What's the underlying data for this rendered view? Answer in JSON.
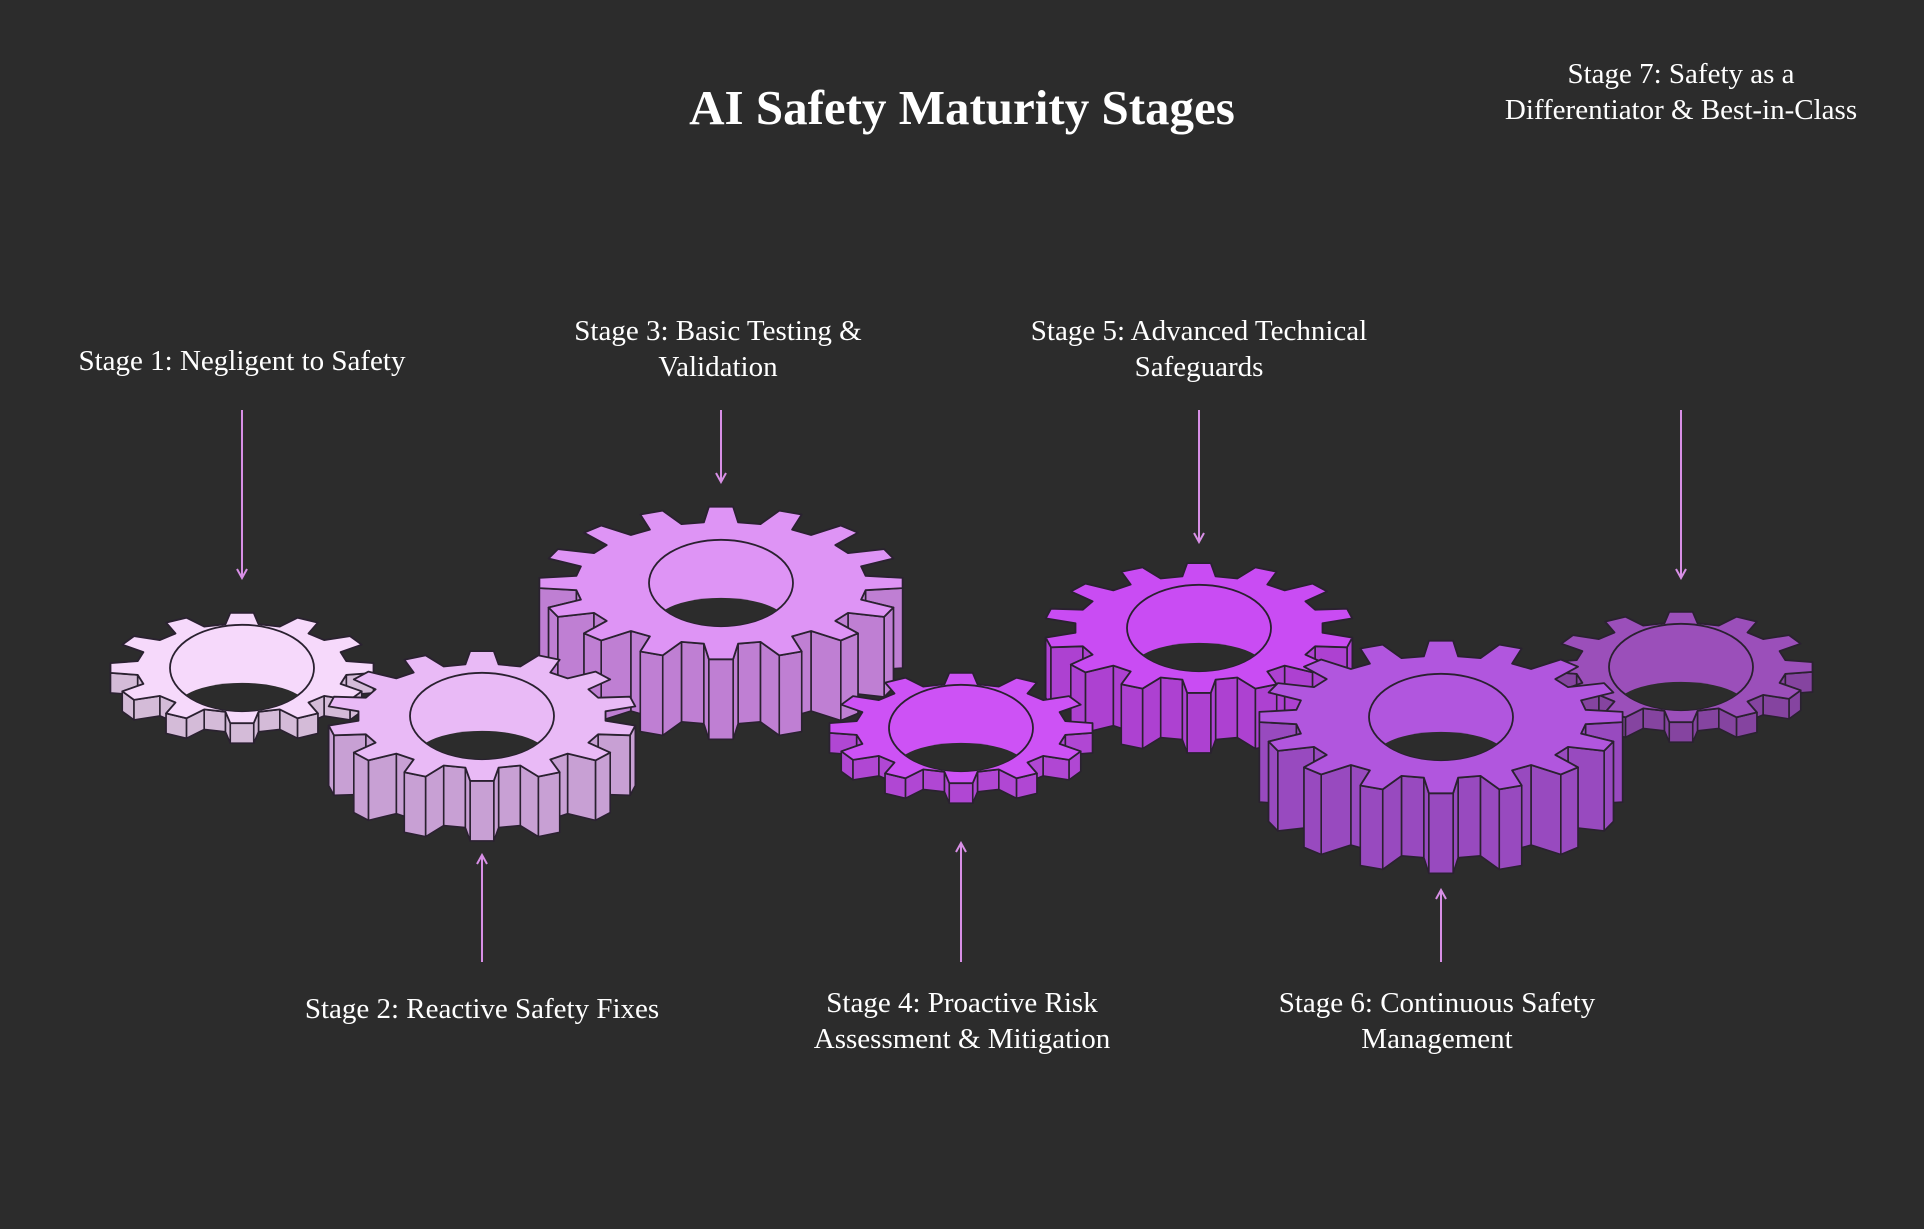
{
  "title": "AI Safety Maturity Stages",
  "colors": {
    "background": "#2c2c2c",
    "arrow": "#d88fe6",
    "outline": "#2a2130"
  },
  "stages": [
    {
      "label_line1": "Stage 1: Negligent to Safety",
      "label_line2": "",
      "color": "#f6d9fb"
    },
    {
      "label_line1": "Stage 2: Reactive Safety Fixes",
      "label_line2": "",
      "color": "#e9baf6"
    },
    {
      "label_line1": "Stage 3: Basic Testing &",
      "label_line2": "Validation",
      "color": "#de94f5"
    },
    {
      "label_line1": "Stage 4: Proactive Risk",
      "label_line2": "Assessment & Mitigation",
      "color": "#cd52f5"
    },
    {
      "label_line1": "Stage 5: Advanced Technical",
      "label_line2": "Safeguards",
      "color": "#c94cf3"
    },
    {
      "label_line1": "Stage 6: Continuous Safety",
      "label_line2": "Management",
      "color": "#b156de"
    },
    {
      "label_line1": "Stage 7: Safety as a",
      "label_line2": "Differentiator & Best-in-Class",
      "color": "#9b4fba"
    }
  ]
}
